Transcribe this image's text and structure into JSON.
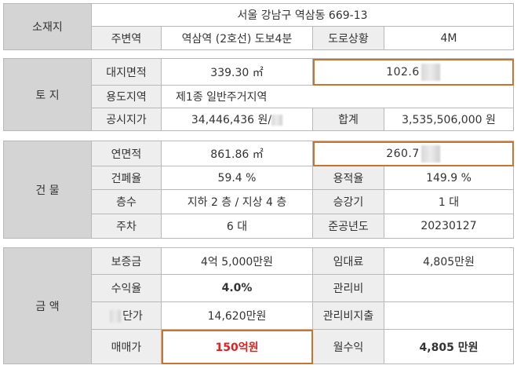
{
  "location": {
    "label": "소재지",
    "address": "서울 강남구 역삼동 669-13",
    "station_label": "주변역",
    "station": "역삼역 (2호선) 도보4분",
    "road_label": "도로상황",
    "road": "4M"
  },
  "land": {
    "label": "토 지",
    "area_label": "대지면적",
    "area_m2": "339.30 ㎡",
    "area_py": "102.6",
    "zoning_label": "용도지역",
    "zoning": "제1종 일반주거지역",
    "price_label": "공시지가",
    "price": "34,446,436 원/",
    "total_label": "합계",
    "total": "3,535,506,000 원"
  },
  "building": {
    "label": "건 물",
    "floor_area_label": "연면적",
    "floor_area_m2": "861.86 ㎡",
    "floor_area_py": "260.7",
    "bcr_label": "건폐율",
    "bcr": "59.4 %",
    "far_label": "용적율",
    "far": "149.9 %",
    "floors_label": "층수",
    "floors": "지하 2 층 / 지상 4 층",
    "elevator_label": "승강기",
    "elevator": "1 대",
    "parking_label": "주차",
    "parking": "6 대",
    "completion_label": "준공년도",
    "completion": "20230127"
  },
  "amount": {
    "label": "금 액",
    "deposit_label": "보증금",
    "deposit": "4억 5,000만원",
    "rent_label": "임대료",
    "rent": "4,805만원",
    "yield_label": "수익율",
    "yield": "4.0%",
    "mgmt_label": "관리비",
    "mgmt": "",
    "unit_price_label": "단가",
    "unit_price": "14,620만원",
    "mgmt_exp_label": "관리비지출",
    "mgmt_exp": "",
    "sale_label": "매매가",
    "sale": "150억원",
    "monthly_label": "월수익",
    "monthly": "4,805 만원"
  },
  "colors": {
    "highlight_border": "#c8742e",
    "sale_text": "#e02020",
    "section_bg": "#d4d4d4",
    "label_bg": "#eeeeee"
  }
}
